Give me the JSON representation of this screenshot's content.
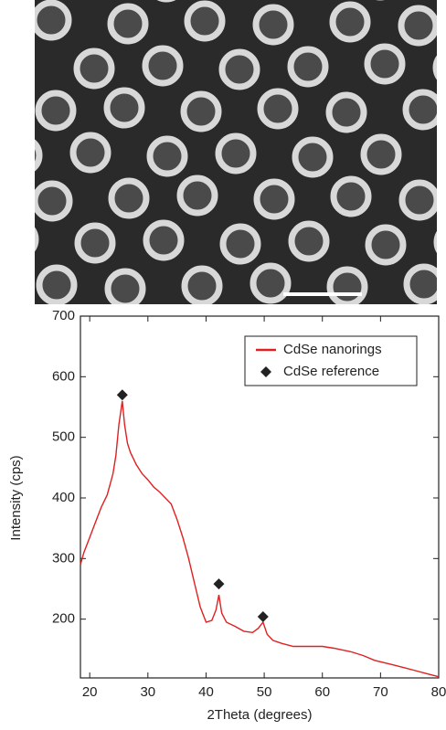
{
  "chart_data": {
    "type": "line",
    "xlabel": "2Theta (degrees)",
    "ylabel": "Intensity (cps)",
    "xlim": [
      18.4,
      80
    ],
    "ylim": [
      103,
      700
    ],
    "xticks": [
      20,
      30,
      40,
      50,
      60,
      70,
      80
    ],
    "yticks": [
      200,
      300,
      400,
      500,
      600,
      700
    ],
    "legend": "upper right",
    "series": [
      {
        "name": "CdSe nanorings",
        "color": "#e02020",
        "marker": "none",
        "x": [
          18.4,
          19,
          20,
          21,
          22,
          23,
          24,
          24.5,
          25,
          25.6,
          26,
          26.5,
          27,
          28,
          29,
          30,
          31,
          32,
          33,
          34,
          35,
          36,
          37,
          38,
          39,
          40,
          41,
          41.7,
          42.2,
          42.7,
          43.5,
          45,
          46.5,
          48,
          49,
          49.8,
          50.5,
          51.5,
          53,
          55,
          57,
          60,
          62,
          63,
          65,
          67,
          69,
          72,
          74,
          76,
          78,
          80
        ],
        "values": [
          290,
          310,
          335,
          360,
          385,
          405,
          440,
          470,
          520,
          560,
          520,
          490,
          475,
          455,
          440,
          430,
          418,
          410,
          400,
          390,
          365,
          335,
          300,
          260,
          220,
          195,
          198,
          215,
          240,
          210,
          195,
          188,
          180,
          178,
          185,
          195,
          175,
          165,
          160,
          155,
          155,
          155,
          152,
          150,
          146,
          140,
          132,
          125,
          120,
          115,
          110,
          105
        ]
      },
      {
        "name": "CdSe reference",
        "color": "#222222",
        "marker": "diamond",
        "x": [
          25.6,
          42.2,
          49.8
        ],
        "values": [
          570,
          258,
          204
        ]
      }
    ]
  }
}
